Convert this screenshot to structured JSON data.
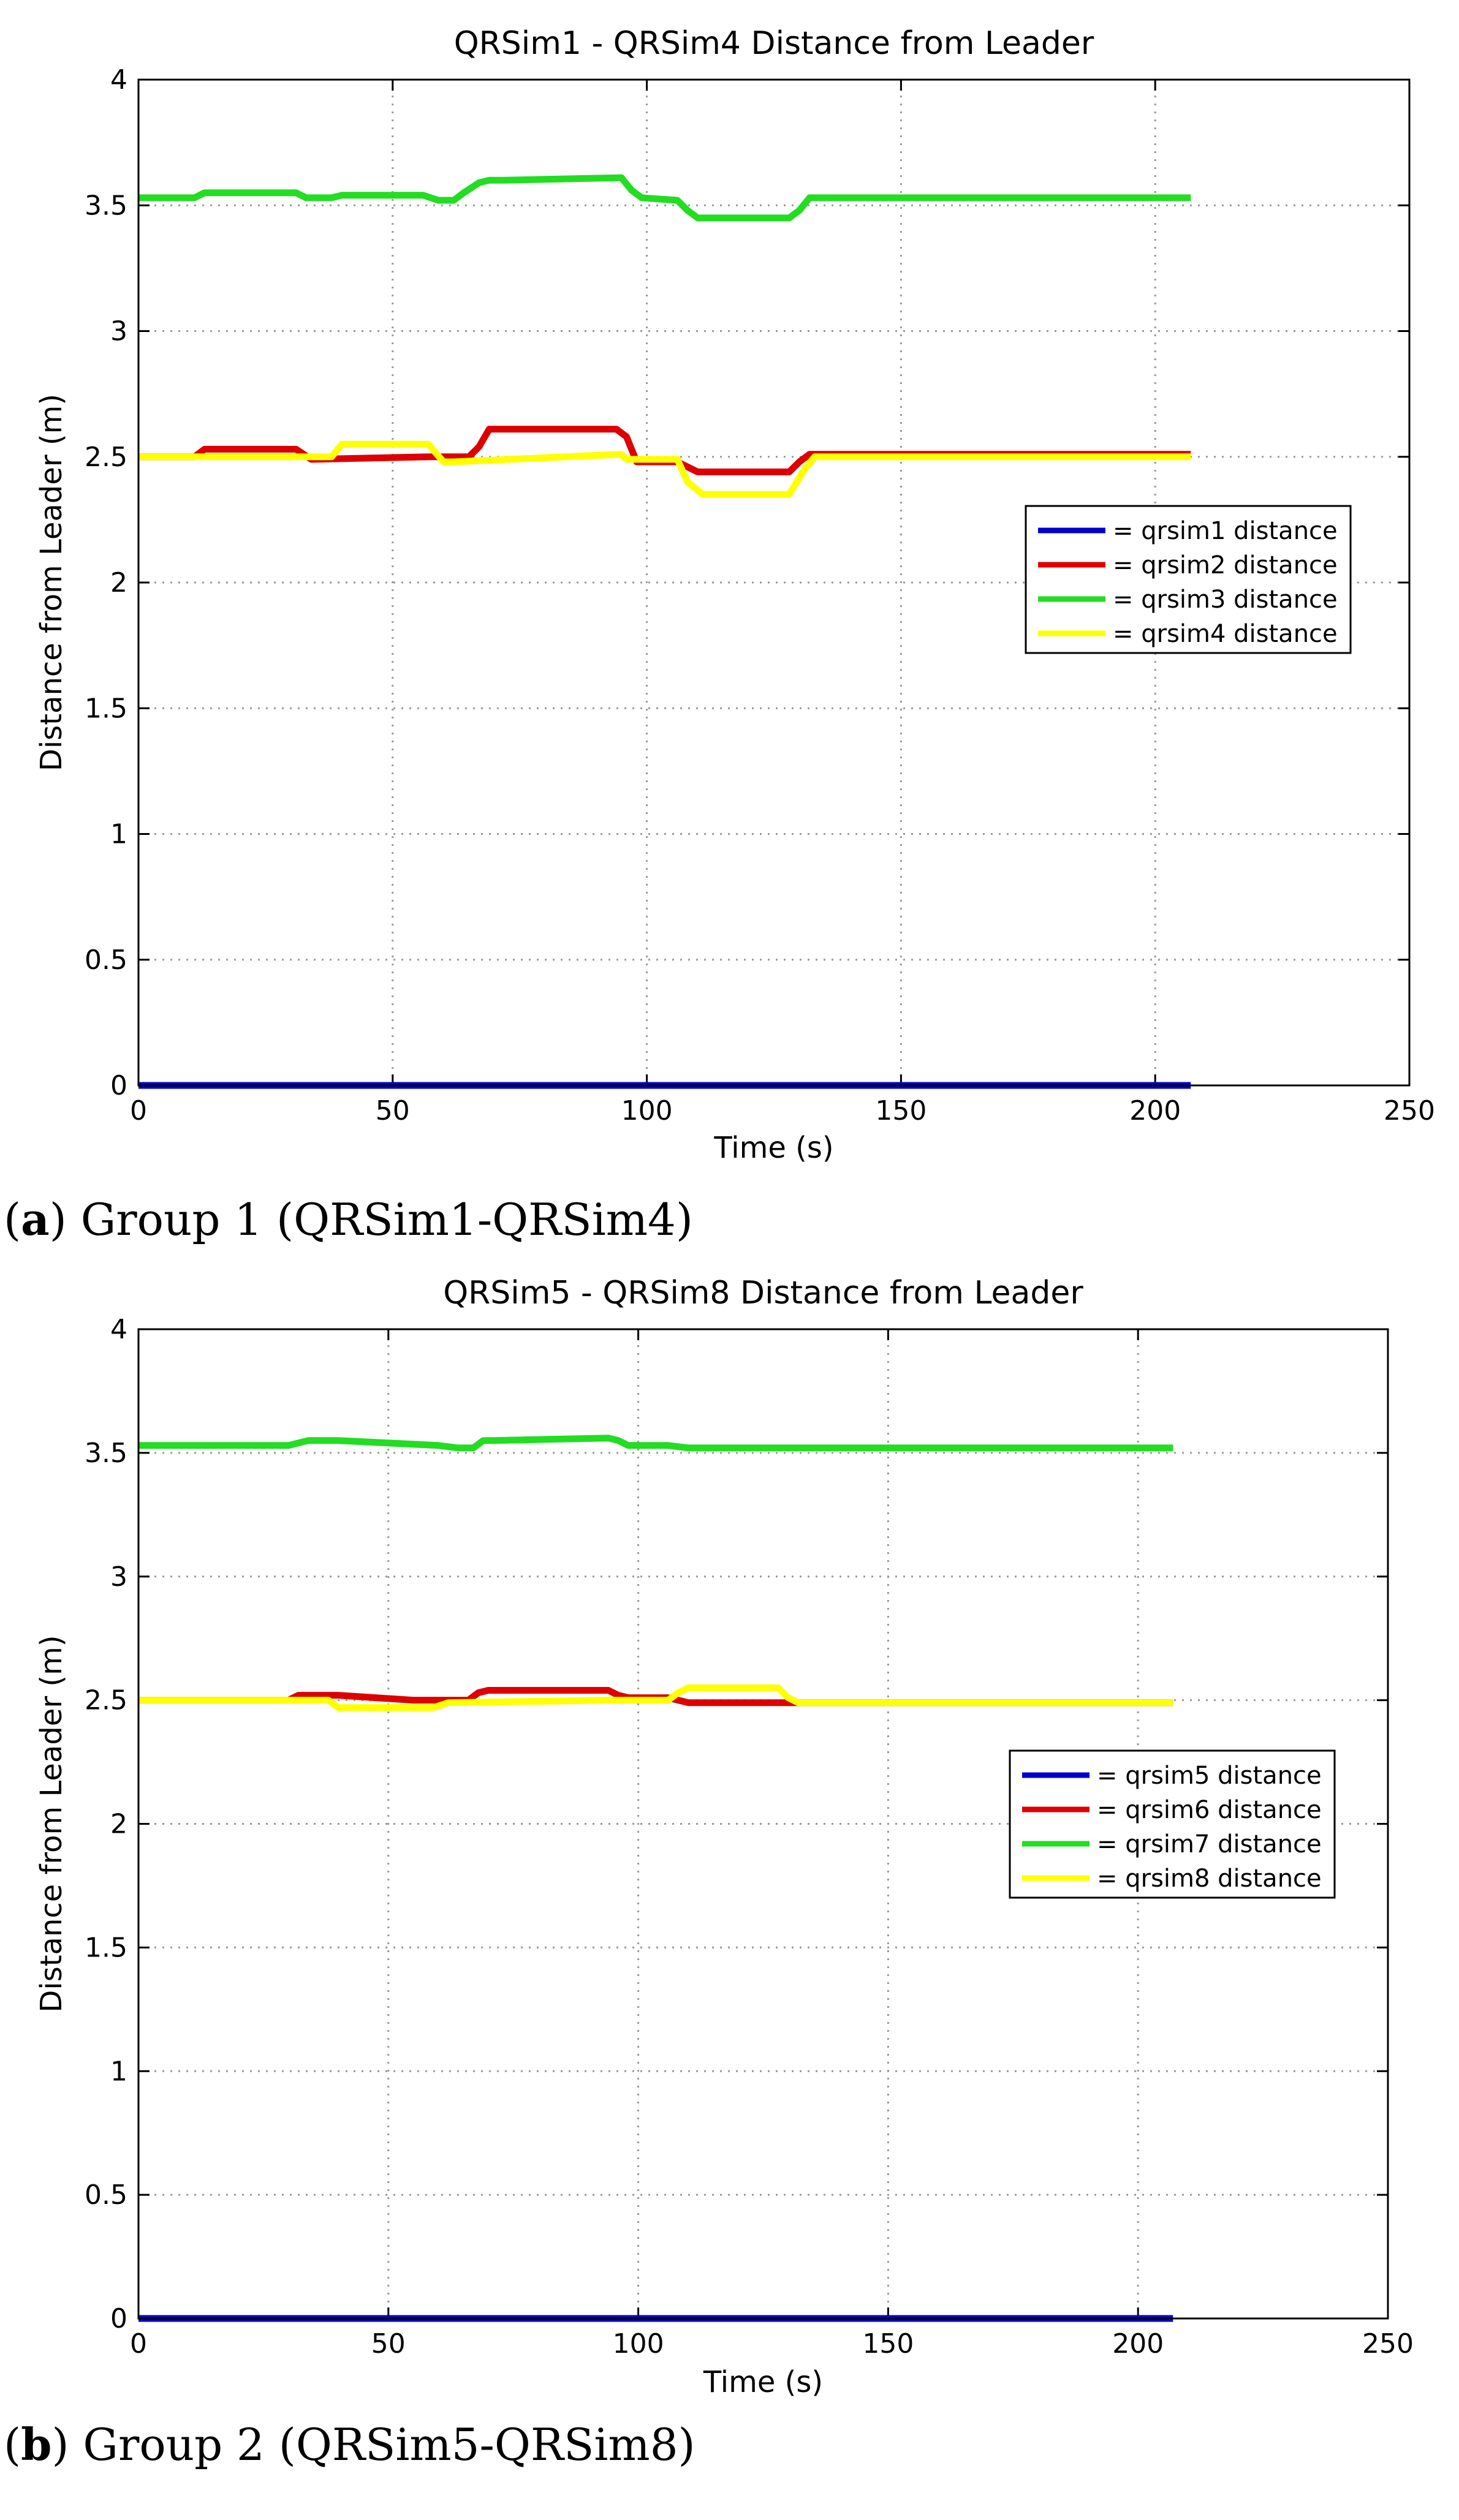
{
  "chart_data": [
    {
      "type": "line",
      "title": "QRSim1 - QRSim4 Distance from Leader",
      "xlabel": "Time (s)",
      "ylabel": "Distance from Leader (m)",
      "xlim": [
        0,
        250
      ],
      "ylim": [
        0,
        4
      ],
      "xticks": [
        "0",
        "50",
        "100",
        "150",
        "200",
        "250"
      ],
      "yticks": [
        "0",
        "0.5",
        "1",
        "1.5",
        "2",
        "2.5",
        "3",
        "3.5",
        "4"
      ],
      "grid": true,
      "legend_position": "right",
      "caption_letter": "a",
      "caption_text": "Group 1 (QRSim1-QRSim4)",
      "series": [
        {
          "name": "= qrsim1 distance",
          "color": "#0000cc",
          "x": [
            0,
            207
          ],
          "y": [
            0,
            0
          ]
        },
        {
          "name": "= qrsim2 distance",
          "color": "#dd0000",
          "x": [
            0,
            11,
            13,
            31,
            34,
            57,
            65,
            67,
            69,
            94,
            96,
            98,
            106,
            108,
            110,
            128,
            130,
            132,
            207
          ],
          "y": [
            2.5,
            2.5,
            2.53,
            2.53,
            2.49,
            2.5,
            2.5,
            2.54,
            2.61,
            2.61,
            2.58,
            2.48,
            2.48,
            2.46,
            2.44,
            2.44,
            2.48,
            2.51,
            2.51
          ]
        },
        {
          "name": "= qrsim3 distance",
          "color": "#22dd22",
          "x": [
            0,
            11,
            13,
            31,
            33,
            38,
            40,
            56,
            59,
            62,
            64,
            67,
            69,
            72,
            95,
            97,
            99,
            106,
            108,
            110,
            128,
            130,
            132,
            207
          ],
          "y": [
            3.53,
            3.53,
            3.55,
            3.55,
            3.53,
            3.53,
            3.54,
            3.54,
            3.52,
            3.52,
            3.55,
            3.59,
            3.6,
            3.6,
            3.61,
            3.56,
            3.53,
            3.52,
            3.48,
            3.45,
            3.45,
            3.48,
            3.53,
            3.53
          ]
        },
        {
          "name": "= qrsim4 distance",
          "color": "#ffff00",
          "x": [
            0,
            33,
            38,
            40,
            57,
            60,
            62,
            95,
            96,
            106,
            108,
            111,
            128,
            131,
            133,
            207
          ],
          "y": [
            2.5,
            2.5,
            2.5,
            2.55,
            2.55,
            2.48,
            2.48,
            2.51,
            2.49,
            2.49,
            2.4,
            2.35,
            2.35,
            2.45,
            2.5,
            2.5
          ]
        }
      ]
    },
    {
      "type": "line",
      "title": "QRSim5 - QRSim8 Distance from Leader",
      "xlabel": "Time (s)",
      "ylabel": "Distance from Leader (m)",
      "xlim": [
        0,
        250
      ],
      "ylim": [
        0,
        4
      ],
      "xticks": [
        "0",
        "50",
        "100",
        "150",
        "200",
        "250"
      ],
      "yticks": [
        "0",
        "0.5",
        "1",
        "1.5",
        "2",
        "2.5",
        "3",
        "3.5",
        "4"
      ],
      "grid": true,
      "legend_position": "right",
      "caption_letter": "b",
      "caption_text": "Group 2 (QRSim5-QRSim8)",
      "series": [
        {
          "name": "= qrsim5 distance",
          "color": "#0000cc",
          "x": [
            0,
            207
          ],
          "y": [
            0,
            0
          ]
        },
        {
          "name": "= qrsim6 distance",
          "color": "#dd0000",
          "x": [
            0,
            30,
            32,
            40,
            55,
            64,
            66,
            68,
            70,
            94,
            96,
            98,
            106,
            110,
            207
          ],
          "y": [
            2.5,
            2.5,
            2.52,
            2.52,
            2.5,
            2.5,
            2.5,
            2.53,
            2.54,
            2.54,
            2.52,
            2.51,
            2.51,
            2.49,
            2.49
          ]
        },
        {
          "name": "= qrsim7 distance",
          "color": "#22dd22",
          "x": [
            0,
            30,
            34,
            40,
            60,
            64,
            67,
            69,
            71,
            94,
            96,
            98,
            106,
            110,
            207
          ],
          "y": [
            3.53,
            3.53,
            3.55,
            3.55,
            3.53,
            3.52,
            3.52,
            3.55,
            3.55,
            3.56,
            3.55,
            3.53,
            3.53,
            3.52,
            3.52
          ]
        },
        {
          "name": "= qrsim8 distance",
          "color": "#ffff00",
          "x": [
            0,
            38,
            40,
            59,
            62,
            94,
            96,
            106,
            108,
            110,
            128,
            130,
            132,
            207
          ],
          "y": [
            2.5,
            2.5,
            2.47,
            2.47,
            2.49,
            2.5,
            2.5,
            2.5,
            2.53,
            2.55,
            2.55,
            2.51,
            2.49,
            2.49
          ]
        }
      ]
    }
  ]
}
